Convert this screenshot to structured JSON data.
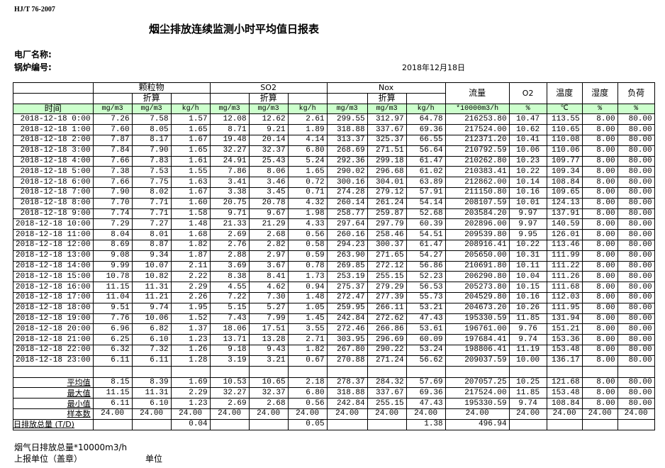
{
  "header": {
    "standard": "HJ/T  76-2007",
    "title": "烟尘排放连续监测小时平均值日报表",
    "plant_label": "电厂名称:",
    "boiler_label": "锅炉编号:",
    "date": "2018年12月18日"
  },
  "columns": {
    "particulate": "颗粒物",
    "so2": "SO2",
    "nox": "Nox",
    "converted": "折算",
    "flow": "流量",
    "o2": "O2",
    "temp": "温度",
    "humidity": "湿度",
    "load": "负荷",
    "time": "时间",
    "units": [
      "mg/m3",
      "mg/m3",
      "kg/h",
      "mg/m3",
      "mg/m3",
      "kg/h",
      "mg/m3",
      "mg/m3",
      "kg/h",
      "*10000m3/h",
      "%",
      "℃",
      "%",
      "%"
    ]
  },
  "rows": [
    [
      "2018-12-18 0:00",
      "7.26",
      "7.58",
      "1.57",
      "12.08",
      "12.62",
      "2.61",
      "299.55",
      "312.97",
      "64.78",
      "216253.80",
      "10.47",
      "113.55",
      "8.00",
      "80.00"
    ],
    [
      "2018-12-18 1:00",
      "7.60",
      "8.05",
      "1.65",
      "8.71",
      "9.21",
      "1.89",
      "318.88",
      "337.67",
      "69.36",
      "217524.00",
      "10.62",
      "110.65",
      "8.00",
      "80.00"
    ],
    [
      "2018-12-18 2:00",
      "7.87",
      "8.17",
      "1.67",
      "19.48",
      "20.14",
      "4.14",
      "313.37",
      "325.37",
      "66.55",
      "212371.20",
      "10.41",
      "110.08",
      "8.00",
      "80.00"
    ],
    [
      "2018-12-18 3:00",
      "7.84",
      "7.90",
      "1.65",
      "32.27",
      "32.37",
      "6.80",
      "268.69",
      "271.51",
      "56.64",
      "210792.59",
      "10.06",
      "110.06",
      "8.00",
      "80.00"
    ],
    [
      "2018-12-18 4:00",
      "7.66",
      "7.83",
      "1.61",
      "24.91",
      "25.43",
      "5.24",
      "292.36",
      "299.18",
      "61.47",
      "210262.80",
      "10.23",
      "109.77",
      "8.00",
      "80.00"
    ],
    [
      "2018-12-18 5:00",
      "7.38",
      "7.53",
      "1.55",
      "7.86",
      "8.06",
      "1.65",
      "290.02",
      "296.68",
      "61.02",
      "210383.41",
      "10.22",
      "109.34",
      "8.00",
      "80.00"
    ],
    [
      "2018-12-18 6:00",
      "7.66",
      "7.75",
      "1.63",
      "3.41",
      "3.46",
      "0.72",
      "300.16",
      "304.01",
      "63.89",
      "212862.00",
      "10.14",
      "108.84",
      "8.00",
      "80.00"
    ],
    [
      "2018-12-18 7:00",
      "7.90",
      "8.02",
      "1.67",
      "3.38",
      "3.45",
      "0.71",
      "274.28",
      "279.12",
      "57.91",
      "211150.80",
      "10.16",
      "109.65",
      "8.00",
      "80.00"
    ],
    [
      "2018-12-18 8:00",
      "7.70",
      "7.71",
      "1.60",
      "20.75",
      "20.78",
      "4.32",
      "260.14",
      "261.24",
      "54.14",
      "208107.59",
      "10.01",
      "124.13",
      "8.00",
      "80.00"
    ],
    [
      "2018-12-18 9:00",
      "7.74",
      "7.71",
      "1.58",
      "9.71",
      "9.67",
      "1.98",
      "258.77",
      "259.87",
      "52.68",
      "203584.20",
      "9.97",
      "137.91",
      "8.00",
      "80.00"
    ],
    [
      "2018-12-18 10:00",
      "7.29",
      "7.27",
      "1.48",
      "21.33",
      "21.29",
      "4.33",
      "297.64",
      "297.79",
      "60.39",
      "202896.00",
      "9.97",
      "140.59",
      "8.00",
      "80.00"
    ],
    [
      "2018-12-18 11:00",
      "8.04",
      "8.01",
      "1.68",
      "2.69",
      "2.68",
      "0.56",
      "260.16",
      "258.46",
      "54.51",
      "209539.80",
      "9.95",
      "126.01",
      "8.00",
      "80.00"
    ],
    [
      "2018-12-18 12:00",
      "8.69",
      "8.87",
      "1.82",
      "2.76",
      "2.82",
      "0.58",
      "294.23",
      "300.37",
      "61.47",
      "208916.41",
      "10.22",
      "113.46",
      "8.00",
      "80.00"
    ],
    [
      "2018-12-18 13:00",
      "9.08",
      "9.34",
      "1.87",
      "2.88",
      "2.97",
      "0.59",
      "263.90",
      "271.65",
      "54.27",
      "205650.00",
      "10.31",
      "111.99",
      "8.00",
      "80.00"
    ],
    [
      "2018-12-18 14:00",
      "9.99",
      "10.07",
      "2.11",
      "3.69",
      "3.67",
      "0.78",
      "269.85",
      "272.12",
      "56.86",
      "210691.80",
      "10.11",
      "111.22",
      "8.00",
      "80.00"
    ],
    [
      "2018-12-18 15:00",
      "10.78",
      "10.82",
      "2.22",
      "8.38",
      "8.41",
      "1.73",
      "253.19",
      "255.15",
      "52.23",
      "206290.80",
      "10.04",
      "111.26",
      "8.00",
      "80.00"
    ],
    [
      "2018-12-18 16:00",
      "11.15",
      "11.31",
      "2.29",
      "4.55",
      "4.62",
      "0.94",
      "275.37",
      "279.29",
      "56.53",
      "205273.80",
      "10.15",
      "111.68",
      "8.00",
      "80.00"
    ],
    [
      "2018-12-18 17:00",
      "11.04",
      "11.21",
      "2.26",
      "7.22",
      "7.30",
      "1.48",
      "272.47",
      "277.39",
      "55.73",
      "204529.80",
      "10.16",
      "112.03",
      "8.00",
      "80.00"
    ],
    [
      "2018-12-18 18:00",
      "9.51",
      "9.74",
      "1.95",
      "5.15",
      "5.27",
      "1.05",
      "259.95",
      "266.11",
      "53.21",
      "204673.20",
      "10.26",
      "111.95",
      "8.00",
      "80.00"
    ],
    [
      "2018-12-18 19:00",
      "7.76",
      "10.06",
      "1.52",
      "7.43",
      "7.99",
      "1.45",
      "242.84",
      "272.62",
      "47.43",
      "195330.59",
      "11.85",
      "131.94",
      "8.00",
      "80.00"
    ],
    [
      "2018-12-18 20:00",
      "6.96",
      "6.82",
      "1.37",
      "18.06",
      "17.51",
      "3.55",
      "272.46",
      "266.86",
      "53.61",
      "196761.00",
      "9.76",
      "151.21",
      "8.00",
      "80.00"
    ],
    [
      "2018-12-18 21:00",
      "6.25",
      "6.10",
      "1.23",
      "13.71",
      "13.28",
      "2.71",
      "303.95",
      "296.69",
      "60.09",
      "197684.41",
      "9.74",
      "153.36",
      "8.00",
      "80.00"
    ],
    [
      "2018-12-18 22:00",
      "6.32",
      "7.32",
      "1.26",
      "9.18",
      "9.43",
      "1.82",
      "267.80",
      "290.22",
      "53.24",
      "198806.41",
      "11.19",
      "153.48",
      "8.00",
      "80.00"
    ],
    [
      "2018-12-18 23:00",
      "6.11",
      "6.11",
      "1.28",
      "3.19",
      "3.21",
      "0.67",
      "270.88",
      "271.24",
      "56.62",
      "209037.59",
      "10.00",
      "136.17",
      "8.00",
      "80.00"
    ]
  ],
  "summary": [
    [
      "平均值",
      "8.15",
      "8.39",
      "1.69",
      "10.53",
      "10.65",
      "2.18",
      "278.37",
      "284.32",
      "57.69",
      "207057.25",
      "10.25",
      "121.68",
      "8.00",
      "80.00"
    ],
    [
      "最大值",
      "11.15",
      "11.31",
      "2.29",
      "32.27",
      "32.37",
      "6.80",
      "318.88",
      "337.67",
      "69.36",
      "217524.00",
      "11.85",
      "153.48",
      "8.00",
      "80.00"
    ],
    [
      "最小值",
      "6.11",
      "6.10",
      "1.23",
      "2.69",
      "2.68",
      "0.56",
      "242.84",
      "255.15",
      "47.43",
      "195330.59",
      "9.74",
      "108.84",
      "8.00",
      "80.00"
    ],
    [
      "样本数",
      "24.00",
      "24.00",
      "24.00",
      "24.00",
      "24.00",
      "24.00",
      "24.00",
      "24.00",
      "24.00",
      "24.00",
      "24.00",
      "24.00",
      "24.00",
      "24.00"
    ],
    [
      "日排放总量 (T/D)",
      "",
      "",
      "0.04",
      "",
      "",
      "0.05",
      "",
      "",
      "1.38",
      "496.94",
      "",
      "",
      "",
      ""
    ]
  ],
  "footer": {
    "flue_gas_total": "烟气日排放总量*10000m3/h",
    "reporting_unit": "上报单位（盖章）",
    "unit": "单位"
  },
  "colors": {
    "header_fill": "#ccffcc"
  }
}
